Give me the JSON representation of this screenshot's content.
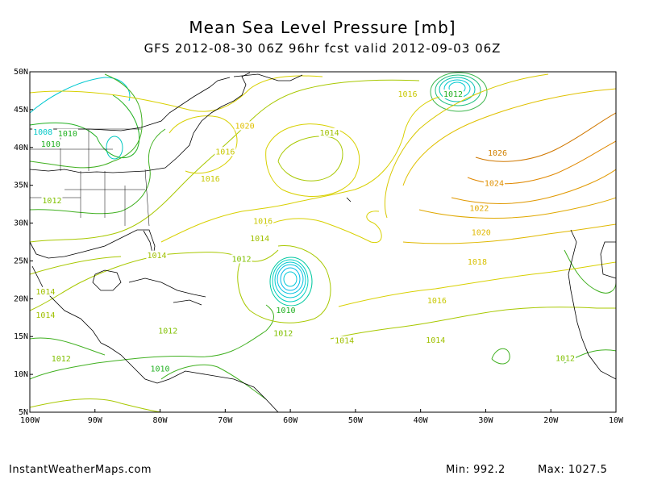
{
  "title": "Mean Sea Level Pressure [mb]",
  "subtitle": "GFS 2012-08-30 06Z 96hr fcst valid 2012-09-03 06Z",
  "footer": {
    "source": "InstantWeatherMaps.com",
    "min_label": "Min:",
    "min_value": "992.2",
    "max_label": "Max:",
    "max_value": "1027.5"
  },
  "axes": {
    "lon_ticks": [
      "100W",
      "90W",
      "80W",
      "70W",
      "60W",
      "50W",
      "40W",
      "30W",
      "20W",
      "10W"
    ],
    "lat_ticks": [
      "50N",
      "45N",
      "40N",
      "35N",
      "30N",
      "25N",
      "20N",
      "15N",
      "10N",
      "5N"
    ],
    "lon_range": [
      -100,
      -10
    ],
    "lat_range": [
      5,
      50
    ]
  },
  "colors": {
    "low_cyan": "#00d0d0",
    "green": "#20b020",
    "yellowgreen": "#a0c800",
    "yellow": "#e0d000",
    "orange": "#e09000",
    "dark_orange": "#c87000"
  },
  "contour_labels": [
    {
      "text": "1008",
      "lon": -98.0,
      "lat": 41.8,
      "color": "#00c8c8"
    },
    {
      "text": "1010",
      "lon": -94.2,
      "lat": 41.6,
      "color": "#20b020"
    },
    {
      "text": "1010",
      "lon": -96.8,
      "lat": 40.2,
      "color": "#20b020"
    },
    {
      "text": "1020",
      "lon": -67.0,
      "lat": 42.6,
      "color": "#e0c000"
    },
    {
      "text": "1016",
      "lon": -70.0,
      "lat": 39.2,
      "color": "#c8c800"
    },
    {
      "text": "1016",
      "lon": -72.3,
      "lat": 35.6,
      "color": "#c8c800"
    },
    {
      "text": "1012",
      "lon": -96.6,
      "lat": 32.7,
      "color": "#80c000"
    },
    {
      "text": "1014",
      "lon": -54.0,
      "lat": 41.7,
      "color": "#a0c000"
    },
    {
      "text": "1016",
      "lon": -42.0,
      "lat": 46.8,
      "color": "#c8c800"
    },
    {
      "text": "1012",
      "lon": -35.0,
      "lat": 46.8,
      "color": "#20b020"
    },
    {
      "text": "1026",
      "lon": -28.2,
      "lat": 39.0,
      "color": "#d08000"
    },
    {
      "text": "1024",
      "lon": -28.7,
      "lat": 35.0,
      "color": "#e09000"
    },
    {
      "text": "1022",
      "lon": -31.0,
      "lat": 31.7,
      "color": "#e0a800"
    },
    {
      "text": "1020",
      "lon": -30.7,
      "lat": 28.5,
      "color": "#e0b800"
    },
    {
      "text": "1018",
      "lon": -31.3,
      "lat": 24.6,
      "color": "#d8c000"
    },
    {
      "text": "1016",
      "lon": -64.2,
      "lat": 30.0,
      "color": "#c8c800"
    },
    {
      "text": "1014",
      "lon": -64.7,
      "lat": 27.7,
      "color": "#a0c000"
    },
    {
      "text": "1012",
      "lon": -67.5,
      "lat": 25.0,
      "color": "#80c000"
    },
    {
      "text": "1014",
      "lon": -80.5,
      "lat": 25.5,
      "color": "#a0c000"
    },
    {
      "text": "1014",
      "lon": -97.6,
      "lat": 20.7,
      "color": "#a0c000"
    },
    {
      "text": "1014",
      "lon": -97.6,
      "lat": 17.6,
      "color": "#a0c000"
    },
    {
      "text": "1012",
      "lon": -78.8,
      "lat": 15.5,
      "color": "#80c000"
    },
    {
      "text": "1012",
      "lon": -95.2,
      "lat": 11.8,
      "color": "#80c000"
    },
    {
      "text": "1010",
      "lon": -80.0,
      "lat": 10.5,
      "color": "#20b020"
    },
    {
      "text": "1010",
      "lon": -60.7,
      "lat": 18.2,
      "color": "#20b020"
    },
    {
      "text": "1012",
      "lon": -61.1,
      "lat": 15.2,
      "color": "#80c000"
    },
    {
      "text": "1014",
      "lon": -51.7,
      "lat": 14.2,
      "color": "#a0c000"
    },
    {
      "text": "1014",
      "lon": -37.7,
      "lat": 14.3,
      "color": "#a0c000"
    },
    {
      "text": "1016",
      "lon": -37.5,
      "lat": 19.5,
      "color": "#c8c800"
    },
    {
      "text": "1012",
      "lon": -17.8,
      "lat": 11.9,
      "color": "#80c000"
    }
  ]
}
